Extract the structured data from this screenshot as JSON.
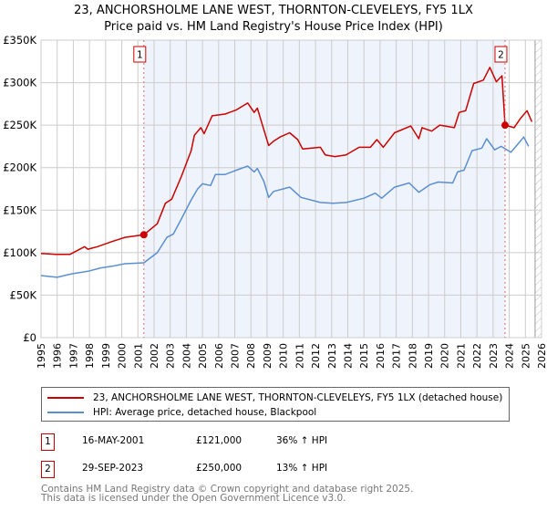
{
  "title": "23, ANCHORSHOLME LANE WEST, THORNTON-CLEVELEYS, FY5 1LX",
  "subtitle": "Price paid vs. HM Land Registry's House Price Index (HPI)",
  "colors": {
    "property": "#cc0000",
    "hpi": "#5b8fd0",
    "shade": "#eef3fc",
    "grid": "#cccccc"
  },
  "chart_data": {
    "type": "line",
    "title": "23, ANCHORSHOLME LANE WEST, THORNTON-CLEVELEYS, FY5 1LX",
    "xlim": [
      1995,
      2026
    ],
    "ylim": [
      0,
      350000
    ],
    "y_ticks": [
      0,
      50000,
      100000,
      150000,
      200000,
      250000,
      300000,
      350000
    ],
    "y_tick_labels": [
      "£0",
      "£50K",
      "£100K",
      "£150K",
      "£200K",
      "£250K",
      "£300K",
      "£350K"
    ],
    "x_ticks": [
      1995,
      1996,
      1997,
      1998,
      1999,
      2000,
      2001,
      2002,
      2003,
      2004,
      2005,
      2006,
      2007,
      2008,
      2009,
      2010,
      2011,
      2012,
      2013,
      2014,
      2015,
      2016,
      2017,
      2018,
      2019,
      2020,
      2021,
      2022,
      2023,
      2024,
      2025,
      2026
    ],
    "x_tick_labels": [
      "1995",
      "1996",
      "1997",
      "1998",
      "1999",
      "2000",
      "2001",
      "2002",
      "2003",
      "2004",
      "2005",
      "2006",
      "2007",
      "2008",
      "2009",
      "2010",
      "2011",
      "2012",
      "2013",
      "2014",
      "2015",
      "2016",
      "2017",
      "2018",
      "2019",
      "2020",
      "2021",
      "2022",
      "2023",
      "2024",
      "2025",
      "2026"
    ],
    "grid": true,
    "shaded_range": [
      2001.37,
      2023.74
    ],
    "forecast_hatch_from": 2025.6,
    "series": [
      {
        "name": "23, ANCHORSHOLME LANE WEST, THORNTON-CLEVELEYS, FY5 1LX (detached house)",
        "x": [
          1995.0,
          1995.9,
          1996.8,
          1997.7,
          1997.9,
          1998.5,
          1999.4,
          2000.2,
          2001.37,
          2002.2,
          2002.7,
          2003.1,
          2003.7,
          2004.3,
          2004.5,
          2004.9,
          2005.1,
          2005.6,
          2006.4,
          2007.1,
          2007.8,
          2008.2,
          2008.4,
          2008.7,
          2009.1,
          2009.4,
          2009.8,
          2010.4,
          2010.9,
          2011.2,
          2012.3,
          2012.6,
          2013.2,
          2013.9,
          2014.7,
          2015.4,
          2015.8,
          2016.2,
          2016.9,
          2017.9,
          2018.4,
          2018.6,
          2019.2,
          2019.7,
          2020.6,
          2020.9,
          2021.3,
          2021.8,
          2022.4,
          2022.8,
          2023.2,
          2023.55,
          2023.74,
          2024.3,
          2024.7,
          2025.1,
          2025.4
        ],
        "y": [
          99000,
          98000,
          98000,
          107000,
          104000,
          107000,
          113000,
          118000,
          121000,
          134000,
          158000,
          163000,
          190000,
          220000,
          238000,
          247000,
          240000,
          261000,
          263000,
          268000,
          276000,
          265000,
          270000,
          251000,
          226000,
          231000,
          236000,
          241000,
          233000,
          222000,
          224000,
          215000,
          213000,
          215000,
          224000,
          224000,
          233000,
          224000,
          241000,
          249000,
          234000,
          247000,
          243000,
          250000,
          247000,
          265000,
          267000,
          299000,
          303000,
          318000,
          301000,
          308000,
          250000,
          247000,
          258000,
          267000,
          254000
        ]
      },
      {
        "name": "HPI: Average price, detached house, Blackpool",
        "x": [
          1995.0,
          1996.0,
          1996.9,
          1997.9,
          1998.7,
          1999.4,
          2000.2,
          2001.37,
          2002.2,
          2002.8,
          2003.2,
          2003.7,
          2004.3,
          2004.7,
          2005.0,
          2005.5,
          2005.8,
          2006.4,
          2007.1,
          2007.8,
          2008.2,
          2008.4,
          2008.8,
          2009.1,
          2009.4,
          2010.4,
          2011.1,
          2012.3,
          2013.1,
          2013.9,
          2015.0,
          2015.7,
          2016.1,
          2016.9,
          2017.8,
          2018.4,
          2019.1,
          2019.6,
          2020.5,
          2020.8,
          2021.2,
          2021.7,
          2022.3,
          2022.6,
          2023.1,
          2023.5,
          2024.1,
          2024.5,
          2024.9,
          2025.2
        ],
        "y": [
          73000,
          71000,
          75000,
          78000,
          82000,
          84000,
          87000,
          88000,
          100000,
          118000,
          122000,
          140000,
          162000,
          175000,
          181000,
          179000,
          192000,
          192000,
          197000,
          202000,
          195000,
          199000,
          184000,
          165000,
          172000,
          177000,
          165000,
          159000,
          158000,
          159000,
          164000,
          170000,
          164000,
          177000,
          182000,
          171000,
          180000,
          183000,
          182000,
          195000,
          197000,
          220000,
          223000,
          234000,
          221000,
          225000,
          218000,
          227000,
          236000,
          225000
        ]
      }
    ],
    "annotations": [
      {
        "label": "1",
        "x": 2001.37,
        "y": 121000
      },
      {
        "label": "2",
        "x": 2023.74,
        "y": 250000
      }
    ]
  },
  "legend": {
    "property": "23, ANCHORSHOLME LANE WEST, THORNTON-CLEVELEYS, FY5 1LX (detached house)",
    "hpi": "HPI: Average price, detached house, Blackpool"
  },
  "transactions": [
    {
      "num": "1",
      "date": "16-MAY-2001",
      "price": "£121,000",
      "hpi": "36% ↑ HPI"
    },
    {
      "num": "2",
      "date": "29-SEP-2023",
      "price": "£250,000",
      "hpi": "13% ↑ HPI"
    }
  ],
  "footer": {
    "line1": "Contains HM Land Registry data © Crown copyright and database right 2025.",
    "line2": "This data is licensed under the Open Government Licence v3.0."
  }
}
